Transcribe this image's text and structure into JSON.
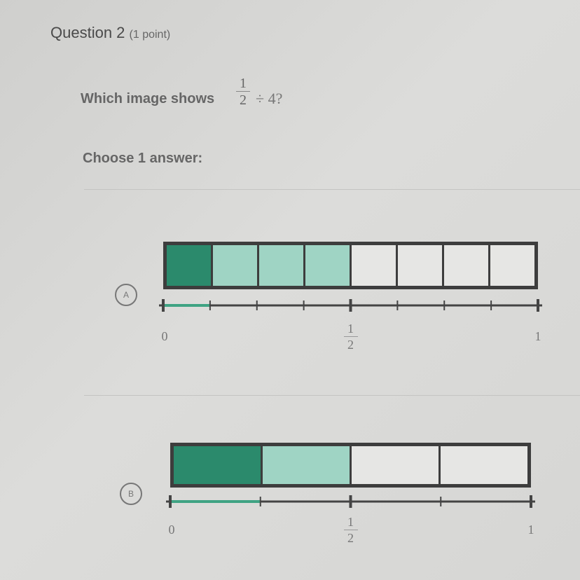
{
  "question": {
    "title": "Question 2",
    "points": "(1 point)",
    "prompt": "Which image shows",
    "expression": {
      "numerator": "1",
      "denominator": "2",
      "operator": "÷ 4?"
    },
    "instruction": "Choose 1 answer:"
  },
  "colors": {
    "dark_fill": "#2b8a6c",
    "light_fill": "#9fd4c4",
    "empty_fill": "#e6e6e4",
    "segment": "#3fa383"
  },
  "choices": [
    {
      "letter": "A",
      "parts": 8,
      "dark_parts": 1,
      "light_parts": 3,
      "segment_fraction": 0.125,
      "labels": {
        "zero": "0",
        "half_num": "1",
        "half_den": "2",
        "one": "1"
      }
    },
    {
      "letter": "B",
      "parts": 4,
      "dark_parts": 1,
      "light_parts": 1,
      "segment_fraction": 0.25,
      "labels": {
        "zero": "0",
        "half_num": "1",
        "half_den": "2",
        "one": "1"
      }
    }
  ]
}
